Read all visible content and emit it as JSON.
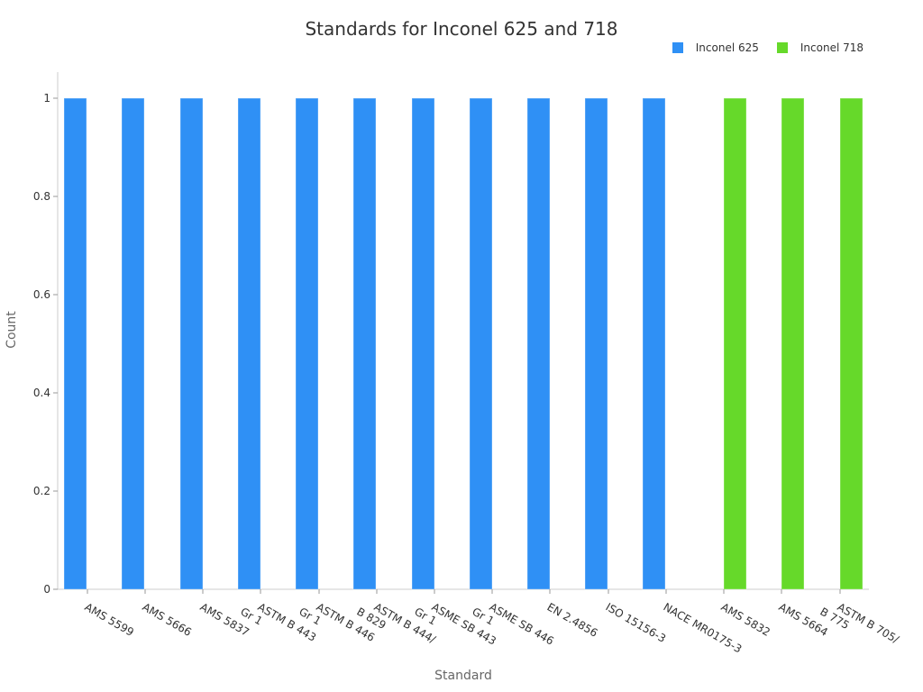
{
  "chart_data": {
    "type": "bar",
    "title": "Standards for Inconel 625 and 718",
    "xlabel": "Standard",
    "ylabel": "Count",
    "ylim": [
      0,
      1
    ],
    "yticks": [
      "0",
      "0.2",
      "0.4",
      "0.6",
      "0.8",
      "1"
    ],
    "legend_position": "top-right",
    "grid": false,
    "categories": [
      "AMS 5599",
      "AMS 5666",
      "AMS 5837",
      "ASTM B 443 Gr 1",
      "ASTM B 446 Gr 1",
      "ASTM B 444/ B 829",
      "ASME SB 443 Gr 1",
      "ASME SB 446 Gr 1",
      "EN 2.4856",
      "ISO 15156-3",
      "NACE MR0175-3",
      "AMS 5832",
      "AMS 5664",
      "ASTM B 705/ B 775"
    ],
    "category_lines": [
      [
        "AMS 5599"
      ],
      [
        "AMS 5666"
      ],
      [
        "AMS 5837"
      ],
      [
        "ASTM B 443",
        "Gr 1"
      ],
      [
        "ASTM B 446",
        "Gr 1"
      ],
      [
        "ASTM B 444/",
        "B 829"
      ],
      [
        "ASME SB 443",
        "Gr 1"
      ],
      [
        "ASME SB 446",
        "Gr 1"
      ],
      [
        "EN 2.4856"
      ],
      [
        "ISO 15156-3"
      ],
      [
        "NACE MR0175-3"
      ],
      [
        "AMS 5832"
      ],
      [
        "AMS 5664"
      ],
      [
        "ASTM B 705/",
        "B 775"
      ]
    ],
    "series": [
      {
        "name": "Inconel 625",
        "color": "#2f90f5",
        "values": [
          1,
          1,
          1,
          1,
          1,
          1,
          1,
          1,
          1,
          1,
          1,
          null,
          null,
          null
        ]
      },
      {
        "name": "Inconel 718",
        "color": "#66d92a",
        "values": [
          null,
          null,
          null,
          null,
          null,
          null,
          null,
          null,
          null,
          null,
          null,
          1,
          1,
          1
        ]
      }
    ]
  }
}
